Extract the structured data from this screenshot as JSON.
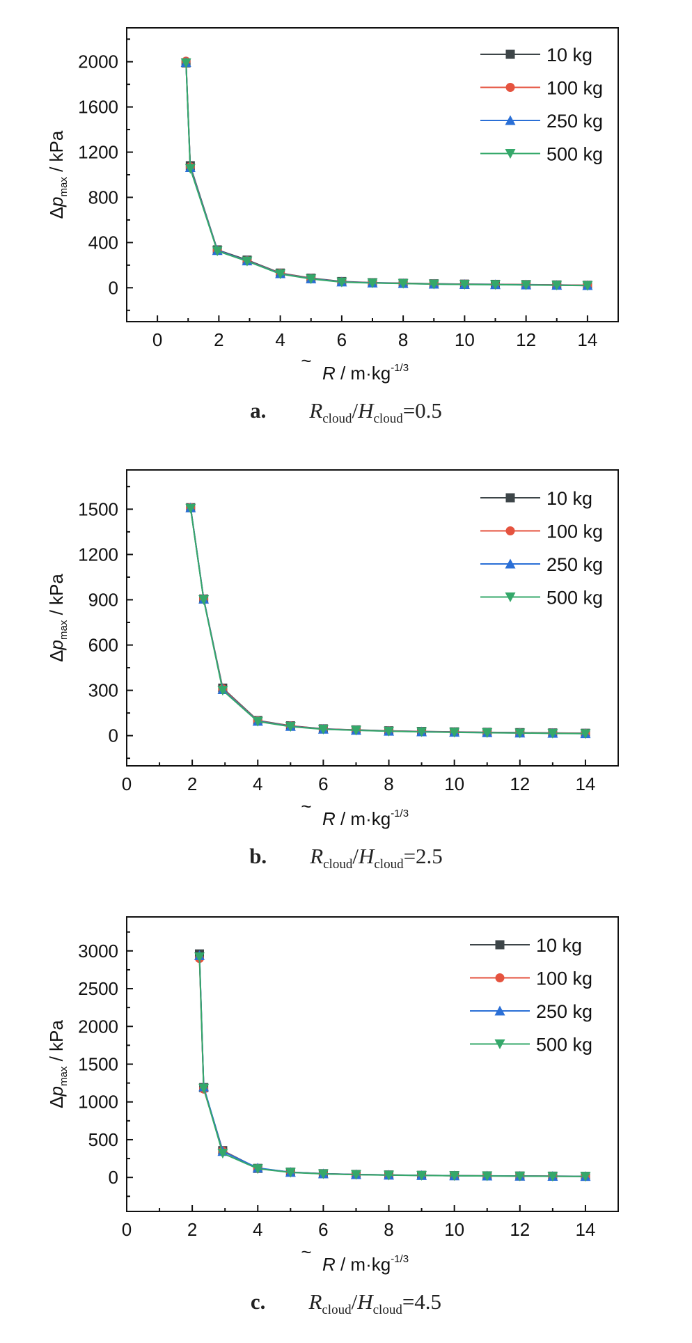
{
  "axis_labels": {
    "y_delta": "Δ",
    "y_p": "p",
    "y_sub": "max",
    "y_unit": " / kPa",
    "x_R": "R",
    "x_tilde": "~",
    "x_unit": " / m·kg",
    "x_exp": "-1/3"
  },
  "chart_data": [
    {
      "type": "line",
      "caption": {
        "letter": "a.",
        "R": "R",
        "sub1": "cloud",
        "slash": "/",
        "H": "H",
        "sub2": "cloud",
        "value": "=0.5"
      },
      "xlim": [
        -1,
        15
      ],
      "ylim": [
        -300,
        2300
      ],
      "xticks": [
        0,
        2,
        4,
        6,
        8,
        10,
        12,
        14
      ],
      "yticks": [
        0,
        400,
        800,
        1200,
        1600,
        2000
      ],
      "x": [
        0.93,
        1.07,
        1.95,
        2.92,
        4.0,
        5.0,
        6.0,
        7.0,
        8.0,
        9.0,
        10.0,
        11.0,
        12.0,
        13.0,
        14.0
      ],
      "series": [
        {
          "name": "10 kg",
          "values": [
            1990,
            1080,
            335,
            245,
            130,
            85,
            55,
            45,
            40,
            35,
            32,
            30,
            28,
            25,
            22
          ]
        },
        {
          "name": "100 kg",
          "values": [
            2005,
            1070,
            330,
            240,
            128,
            82,
            53,
            44,
            39,
            34,
            31,
            29,
            27,
            24,
            21
          ]
        },
        {
          "name": "250 kg",
          "values": [
            1995,
            1065,
            330,
            238,
            125,
            80,
            52,
            43,
            38,
            33,
            30,
            28,
            26,
            23,
            20
          ]
        },
        {
          "name": "500 kg",
          "values": [
            1990,
            1055,
            325,
            235,
            122,
            78,
            50,
            42,
            37,
            32,
            29,
            27,
            25,
            22,
            19
          ]
        }
      ]
    },
    {
      "type": "line",
      "caption": {
        "letter": "b.",
        "R": "R",
        "sub1": "cloud",
        "slash": "/",
        "H": "H",
        "sub2": "cloud",
        "value": "=2.5"
      },
      "xlim": [
        0,
        15
      ],
      "ylim": [
        -200,
        1760
      ],
      "xticks": [
        0,
        2,
        4,
        6,
        8,
        10,
        12,
        14
      ],
      "yticks": [
        0,
        300,
        600,
        900,
        1200,
        1500
      ],
      "x": [
        1.95,
        2.35,
        2.93,
        4.0,
        5.0,
        6.0,
        7.0,
        8.0,
        9.0,
        10.0,
        11.0,
        12.0,
        13.0,
        14.0
      ],
      "series": [
        {
          "name": "10 kg",
          "values": [
            1510,
            905,
            315,
            100,
            65,
            45,
            38,
            32,
            28,
            25,
            22,
            20,
            18,
            16
          ]
        },
        {
          "name": "100 kg",
          "values": [
            1510,
            905,
            310,
            98,
            64,
            44,
            37,
            31,
            27,
            24,
            21,
            19,
            17,
            15
          ]
        },
        {
          "name": "250 kg",
          "values": [
            1510,
            905,
            305,
            96,
            62,
            43,
            36,
            30,
            26,
            23,
            20,
            18,
            16,
            14
          ]
        },
        {
          "name": "500 kg",
          "values": [
            1505,
            900,
            300,
            94,
            60,
            42,
            35,
            29,
            25,
            22,
            19,
            17,
            15,
            13
          ]
        }
      ]
    },
    {
      "type": "line",
      "caption": {
        "letter": "c.",
        "R": "R",
        "sub1": "cloud",
        "slash": "/",
        "H": "H",
        "sub2": "cloud",
        "value": "=4.5"
      },
      "xlim": [
        0,
        15
      ],
      "ylim": [
        -450,
        3450
      ],
      "xticks": [
        0,
        2,
        4,
        6,
        8,
        10,
        12,
        14
      ],
      "yticks": [
        0,
        500,
        1000,
        1500,
        2000,
        2500,
        3000
      ],
      "x": [
        2.22,
        2.35,
        2.93,
        4.0,
        5.0,
        6.0,
        7.0,
        8.0,
        9.0,
        10.0,
        11.0,
        12.0,
        13.0,
        14.0
      ],
      "series": [
        {
          "name": "10 kg",
          "values": [
            2960,
            1190,
            355,
            120,
            70,
            50,
            40,
            33,
            28,
            24,
            21,
            19,
            17,
            15
          ]
        },
        {
          "name": "100 kg",
          "values": [
            2900,
            1170,
            350,
            118,
            68,
            49,
            39,
            32,
            27,
            23,
            20,
            18,
            16,
            14
          ]
        },
        {
          "name": "250 kg",
          "values": [
            2940,
            1200,
            345,
            125,
            69,
            49,
            39,
            32,
            27,
            23,
            20,
            18,
            16,
            14
          ]
        },
        {
          "name": "500 kg",
          "values": [
            2920,
            1180,
            320,
            115,
            66,
            47,
            37,
            30,
            26,
            22,
            19,
            17,
            15,
            13
          ]
        }
      ]
    }
  ],
  "colors": {
    "10 kg": "#3d4548",
    "100 kg": "#e5533f",
    "250 kg": "#2a6fd6",
    "500 kg": "#35a86a",
    "axis": "#111111"
  },
  "markers": {
    "10 kg": "square",
    "100 kg": "circle",
    "250 kg": "triangle-up",
    "500 kg": "triangle-down"
  }
}
